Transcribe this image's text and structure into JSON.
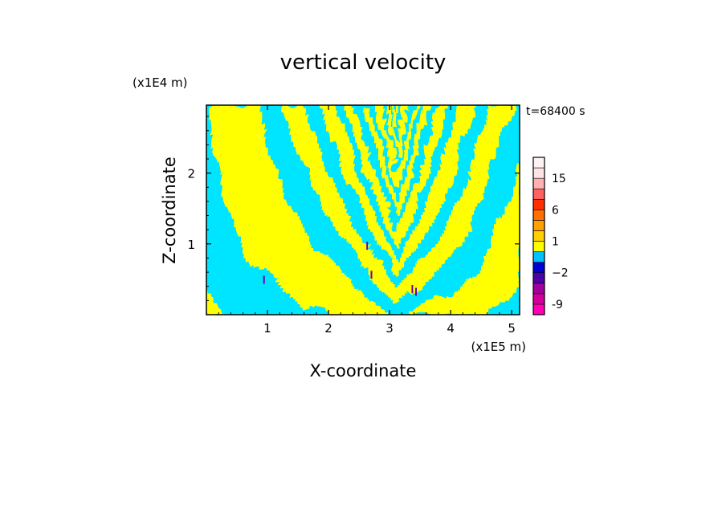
{
  "chart_data": {
    "type": "heatmap",
    "title": "vertical velocity",
    "xlabel": "X-coordinate",
    "ylabel": "Z-coordinate",
    "x_unit_label": "(x1E5 m)",
    "y_unit_label": "(x1E4 m)",
    "time_label": "t=68400 s",
    "xlim": [
      0,
      5.13
    ],
    "ylim": [
      0,
      2.96
    ],
    "x_ticks": [
      1,
      2,
      3,
      4,
      5
    ],
    "y_ticks": [
      1,
      2
    ],
    "x_tick_labels": [
      "1",
      "2",
      "3",
      "4",
      "5"
    ],
    "y_tick_labels": [
      "1",
      "2"
    ],
    "field_colors": {
      "positive": "#ffff00",
      "negative": "#00e5ff",
      "strong_negative": "#6a00a8"
    },
    "colorbar": {
      "levels": [
        -12,
        -9,
        -6,
        -4,
        -2,
        -1,
        0,
        1,
        2,
        4,
        6,
        9,
        12,
        15,
        18,
        24
      ],
      "colors": [
        "#ff00b4",
        "#d2009a",
        "#a0009c",
        "#4b00a8",
        "#0000d0",
        "#00c0ff",
        "#ffff00",
        "#ffd000",
        "#ffa000",
        "#ff7000",
        "#ff3000",
        "#ff6060",
        "#ffb0b0",
        "#ffe4e4",
        "#fff2f2"
      ],
      "labels": [
        {
          "value": -9,
          "text": "-9"
        },
        {
          "value": -2,
          "text": "−2"
        },
        {
          "value": 1,
          "text": "1"
        },
        {
          "value": 6,
          "text": "6"
        },
        {
          "value": 15,
          "text": "15"
        }
      ]
    }
  }
}
